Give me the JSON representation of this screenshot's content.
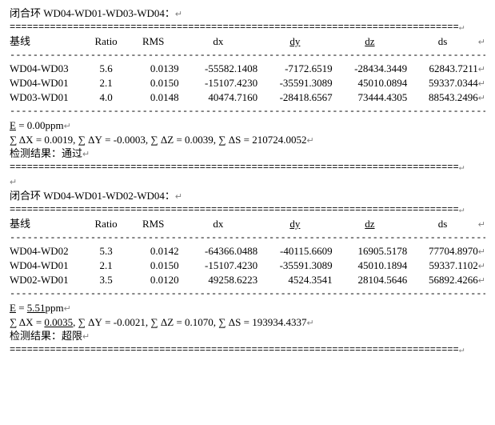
{
  "glyph": {
    "ret": "↵"
  },
  "labels": {
    "loop_prefix": "闭合环",
    "colon": "：",
    "baseline": "基线",
    "ratio": "Ratio",
    "rms": "RMS",
    "dx": "dx",
    "dy": "dy",
    "dz": "dz",
    "ds": "ds",
    "E": "E",
    "eq": "=",
    "ppm": "ppm",
    "sumDX": "∑ ΔX",
    "sumDY": "∑ ΔY",
    "sumDZ": "∑ ΔZ",
    "sumDS": "∑ ΔS",
    "result_prefix": "检测结果："
  },
  "divider_double": "==============================================================================",
  "divider_dash": "------------------------------------------------------------------------------------------------------------------------------",
  "loops": [
    {
      "title": "WD04-WD01-WD03-WD04",
      "rows": [
        {
          "name": "WD04-WD03",
          "ratio": "5.6",
          "rms": "0.0139",
          "dx": "-55582.1408",
          "dy": "-7172.6519",
          "dz": "-28434.3449",
          "ds": "62843.7211"
        },
        {
          "name": "WD04-WD01",
          "ratio": "2.1",
          "rms": "0.0150",
          "dx": "-15107.4230",
          "dy": "-35591.3089",
          "dz": "45010.0894",
          "ds": "59337.0344"
        },
        {
          "name": "WD03-WD01",
          "ratio": "4.0",
          "rms": "0.0148",
          "dx": "40474.7160",
          "dy": "-28418.6567",
          "dz": "73444.4305",
          "ds": "88543.2496"
        }
      ],
      "E": "0.00",
      "E_underline": false,
      "sumDX": "0.0019",
      "sumDX_underline": false,
      "sumDY": "-0.0003",
      "sumDZ": "0.0039",
      "sumDS": "210724.0052",
      "result": "通过"
    },
    {
      "title": "WD04-WD01-WD02-WD04",
      "rows": [
        {
          "name": "WD04-WD02",
          "ratio": "5.3",
          "rms": "0.0142",
          "dx": "-64366.0488",
          "dy": "-40115.6609",
          "dz": "16905.5178",
          "ds": "77704.8970"
        },
        {
          "name": "WD04-WD01",
          "ratio": "2.1",
          "rms": "0.0150",
          "dx": "-15107.4230",
          "dy": "-35591.3089",
          "dz": "45010.1894",
          "ds": "59337.1102"
        },
        {
          "name": "WD02-WD01",
          "ratio": "3.5",
          "rms": "0.0120",
          "dx": "49258.6223",
          "dy": "4524.3541",
          "dz": "28104.5646",
          "ds": "56892.4266"
        }
      ],
      "E": "5.51",
      "E_underline": true,
      "sumDX": "0.0035",
      "sumDX_underline": true,
      "sumDY": "-0.0021",
      "sumDZ": "0.1070",
      "sumDS": "193934.4337",
      "result": "超限"
    }
  ]
}
